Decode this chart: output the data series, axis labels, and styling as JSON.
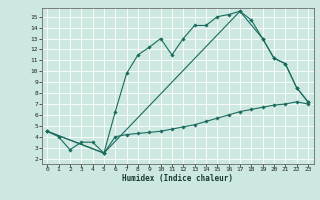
{
  "title": "",
  "xlabel": "Humidex (Indice chaleur)",
  "bg_color": "#cce8e0",
  "grid_color": "#ffffff",
  "line_color": "#1a6b5e",
  "xlim": [
    -0.5,
    23.5
  ],
  "ylim": [
    1.5,
    15.8
  ],
  "xticks": [
    0,
    1,
    2,
    3,
    4,
    5,
    6,
    7,
    8,
    9,
    10,
    11,
    12,
    13,
    14,
    15,
    16,
    17,
    18,
    19,
    20,
    21,
    22,
    23
  ],
  "yticks": [
    2,
    3,
    4,
    5,
    6,
    7,
    8,
    9,
    10,
    11,
    12,
    13,
    14,
    15
  ],
  "curve1_x": [
    0,
    1,
    2,
    3,
    4,
    5,
    6,
    7,
    8,
    9,
    10,
    11,
    12,
    13,
    14,
    15,
    16,
    17,
    18,
    19,
    20,
    21,
    22,
    23
  ],
  "curve1_y": [
    4.5,
    4.0,
    2.8,
    3.5,
    3.5,
    2.5,
    6.3,
    9.8,
    11.5,
    12.2,
    13.0,
    11.5,
    13.0,
    14.2,
    14.2,
    15.0,
    15.2,
    15.5,
    14.7,
    13.0,
    11.2,
    10.7,
    8.5,
    7.2
  ],
  "curve2_x": [
    0,
    5,
    6,
    7,
    8,
    9,
    10,
    11,
    12,
    13,
    14,
    15,
    16,
    17,
    18,
    19,
    20,
    21,
    22,
    23
  ],
  "curve2_y": [
    4.5,
    2.5,
    4.0,
    4.2,
    4.3,
    4.4,
    4.5,
    4.7,
    4.9,
    5.1,
    5.4,
    5.7,
    6.0,
    6.3,
    6.5,
    6.7,
    6.9,
    7.0,
    7.2,
    7.0
  ],
  "curve3_x": [
    0,
    5,
    17,
    19,
    20,
    21,
    22,
    23
  ],
  "curve3_y": [
    4.5,
    2.5,
    15.5,
    13.0,
    11.2,
    10.7,
    8.5,
    7.2
  ]
}
